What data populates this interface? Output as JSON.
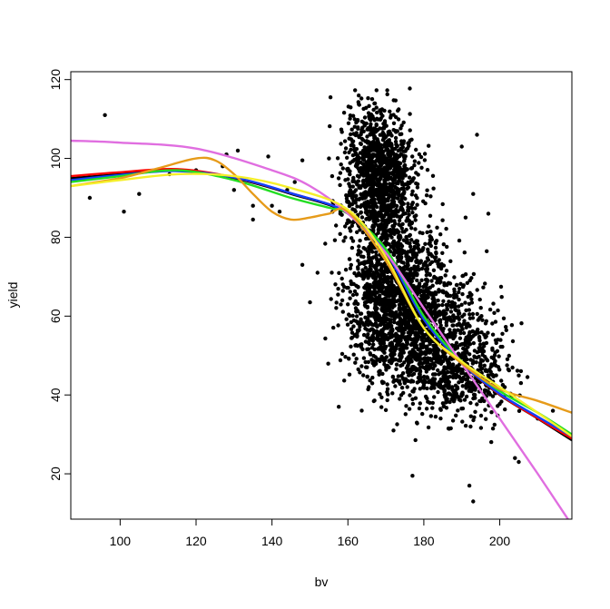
{
  "chart_data": {
    "type": "scatter",
    "title": "",
    "xlabel": "bv",
    "ylabel": "yield",
    "xlim": [
      87,
      219
    ],
    "ylim": [
      8.5,
      122
    ],
    "xticks": [
      100,
      120,
      140,
      160,
      180,
      200
    ],
    "yticks": [
      20,
      40,
      60,
      80,
      100,
      120
    ],
    "grid": false,
    "legend": "none",
    "point_color": "#000000",
    "scatter_outliers": [
      {
        "x": 92,
        "y": 90
      },
      {
        "x": 96,
        "y": 111
      },
      {
        "x": 101,
        "y": 86.5
      },
      {
        "x": 105,
        "y": 91
      },
      {
        "x": 113,
        "y": 96
      },
      {
        "x": 120,
        "y": 97
      },
      {
        "x": 127,
        "y": 98
      },
      {
        "x": 128,
        "y": 101
      },
      {
        "x": 130,
        "y": 92
      },
      {
        "x": 131,
        "y": 102
      },
      {
        "x": 135,
        "y": 84.5
      },
      {
        "x": 135,
        "y": 88
      },
      {
        "x": 139,
        "y": 100.5
      },
      {
        "x": 140,
        "y": 88
      },
      {
        "x": 142,
        "y": 86.5
      },
      {
        "x": 144,
        "y": 92
      },
      {
        "x": 146,
        "y": 94
      },
      {
        "x": 148,
        "y": 73
      },
      {
        "x": 148,
        "y": 99.5
      },
      {
        "x": 150,
        "y": 63.5
      },
      {
        "x": 152,
        "y": 71
      },
      {
        "x": 155,
        "y": 100
      },
      {
        "x": 156,
        "y": 89
      },
      {
        "x": 158,
        "y": 86
      },
      {
        "x": 177,
        "y": 19.5
      },
      {
        "x": 172,
        "y": 31
      },
      {
        "x": 190,
        "y": 103
      },
      {
        "x": 194,
        "y": 106
      },
      {
        "x": 197,
        "y": 86
      },
      {
        "x": 192,
        "y": 17
      },
      {
        "x": 193,
        "y": 13
      },
      {
        "x": 204,
        "y": 24
      },
      {
        "x": 205,
        "y": 23
      },
      {
        "x": 214,
        "y": 36
      },
      {
        "x": 210,
        "y": 34
      },
      {
        "x": 193,
        "y": 91
      },
      {
        "x": 191,
        "y": 85
      }
    ],
    "scatter_clusters": [
      {
        "name": "",
        "cx": 168,
        "cy": 96,
        "sx": 4.5,
        "sy": 8.5,
        "n": 1100
      },
      {
        "name": "",
        "cx": 172,
        "cy": 68,
        "sx": 6.5,
        "sy": 10,
        "n": 1300
      },
      {
        "name": "",
        "cx": 180,
        "cy": 55,
        "sx": 8,
        "sy": 8,
        "n": 900
      },
      {
        "name": "",
        "cx": 190,
        "cy": 46,
        "sx": 6.5,
        "sy": 7,
        "n": 450
      }
    ],
    "series": [
      {
        "name": "",
        "color": "#e06ee0",
        "x": [
          87,
          100,
          120,
          140,
          150,
          160,
          170,
          180,
          190,
          200,
          210,
          219
        ],
        "y": [
          104.5,
          104,
          102.5,
          97,
          93,
          86,
          76,
          62,
          48,
          34,
          20,
          7
        ]
      },
      {
        "name": "",
        "color": "#e69b1a",
        "x": [
          87,
          100,
          110,
          120,
          125,
          130,
          135,
          140,
          145,
          150,
          155,
          160,
          170,
          180,
          190,
          200,
          210,
          219
        ],
        "y": [
          93,
          95,
          97.5,
          100,
          99.5,
          96,
          91,
          86.5,
          84.5,
          85,
          86,
          86.5,
          74,
          57,
          48,
          41.5,
          38.5,
          35.5
        ]
      },
      {
        "name": "",
        "color": "#000000",
        "x": [
          87,
          100,
          115,
          130,
          145,
          160,
          170,
          180,
          190,
          200,
          210,
          219
        ],
        "y": [
          95,
          96,
          97,
          95,
          91,
          86,
          76,
          59,
          48,
          40,
          34,
          28.5
        ]
      },
      {
        "name": "",
        "color": "#ff0000",
        "x": [
          87,
          100,
          115,
          130,
          145,
          160,
          170,
          180,
          190,
          200,
          210,
          219
        ],
        "y": [
          95.5,
          96.5,
          97.3,
          95.2,
          91.2,
          86.2,
          76.2,
          59.2,
          48.1,
          40.1,
          34.1,
          29
        ]
      },
      {
        "name": "",
        "color": "#1040ff",
        "x": [
          87,
          100,
          115,
          130,
          145,
          160,
          170,
          180,
          190,
          200,
          210,
          219
        ],
        "y": [
          94.5,
          95.8,
          96.8,
          95.2,
          91.2,
          86.2,
          76.2,
          59.2,
          48.1,
          40.3,
          34.5,
          29.5
        ]
      },
      {
        "name": "",
        "color": "#22dd22",
        "x": [
          87,
          100,
          115,
          130,
          145,
          155,
          160,
          170,
          180,
          190,
          200,
          210,
          219
        ],
        "y": [
          94,
          95.5,
          97,
          94.5,
          90,
          87.5,
          86,
          77,
          60,
          48.5,
          41,
          35.5,
          30
        ]
      },
      {
        "name": "",
        "color": "#f5ef2a",
        "x": [
          87,
          100,
          115,
          130,
          145,
          160,
          170,
          180,
          190,
          200,
          210,
          219
        ],
        "y": [
          93,
          94.5,
          96,
          95.5,
          92.5,
          87,
          75,
          57,
          48.5,
          42,
          35.5,
          29.5
        ]
      }
    ]
  }
}
